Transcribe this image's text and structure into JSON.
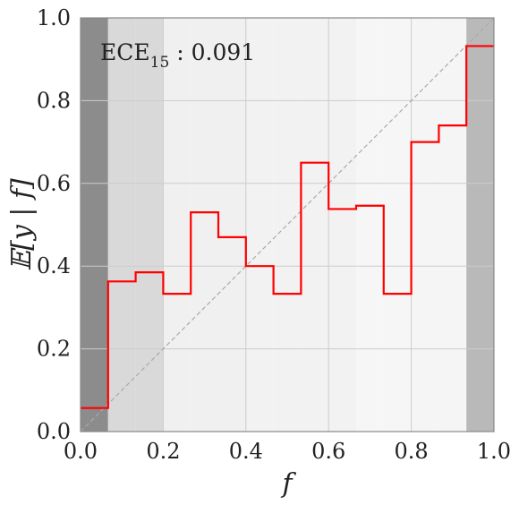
{
  "chart_data": {
    "type": "reliability-diagram",
    "xlabel": "f",
    "ylabel": "𝔼[y | f]",
    "xlim": [
      0,
      1
    ],
    "ylim": [
      0,
      1
    ],
    "xticks": [
      "0.0",
      "0.2",
      "0.4",
      "0.6",
      "0.8",
      "1.0"
    ],
    "yticks": [
      "0.0",
      "0.2",
      "0.4",
      "0.6",
      "0.8",
      "1.0"
    ],
    "grid": true,
    "annotation": {
      "main": "ECE",
      "sub": "15",
      "rest": " : 0.091"
    },
    "bins": [
      {
        "left": 0.0,
        "right": 0.0667,
        "accuracy": 0.057,
        "density": 0.9
      },
      {
        "left": 0.0667,
        "right": 0.1333,
        "accuracy": 0.363,
        "density": 0.3
      },
      {
        "left": 0.1333,
        "right": 0.2,
        "accuracy": 0.385,
        "density": 0.3
      },
      {
        "left": 0.2,
        "right": 0.2667,
        "accuracy": 0.333,
        "density": 0.12
      },
      {
        "left": 0.2667,
        "right": 0.3333,
        "accuracy": 0.53,
        "density": 0.12
      },
      {
        "left": 0.3333,
        "right": 0.4,
        "accuracy": 0.47,
        "density": 0.12
      },
      {
        "left": 0.4,
        "right": 0.4667,
        "accuracy": 0.4,
        "density": 0.1
      },
      {
        "left": 0.4667,
        "right": 0.5333,
        "accuracy": 0.333,
        "density": 0.1
      },
      {
        "left": 0.5333,
        "right": 0.6,
        "accuracy": 0.65,
        "density": 0.1
      },
      {
        "left": 0.6,
        "right": 0.6667,
        "accuracy": 0.538,
        "density": 0.1
      },
      {
        "left": 0.6667,
        "right": 0.7333,
        "accuracy": 0.546,
        "density": 0.07
      },
      {
        "left": 0.7333,
        "right": 0.8,
        "accuracy": 0.333,
        "density": 0.07
      },
      {
        "left": 0.8,
        "right": 0.8667,
        "accuracy": 0.7,
        "density": 0.08
      },
      {
        "left": 0.8667,
        "right": 0.9333,
        "accuracy": 0.74,
        "density": 0.08
      },
      {
        "left": 0.9333,
        "right": 1.0,
        "accuracy": 0.932,
        "density": 0.55
      }
    ],
    "colors": {
      "line": "#ff0000",
      "diagonal": "#aaaaaa",
      "grid": "#cccccc",
      "frame": "#888888"
    }
  }
}
